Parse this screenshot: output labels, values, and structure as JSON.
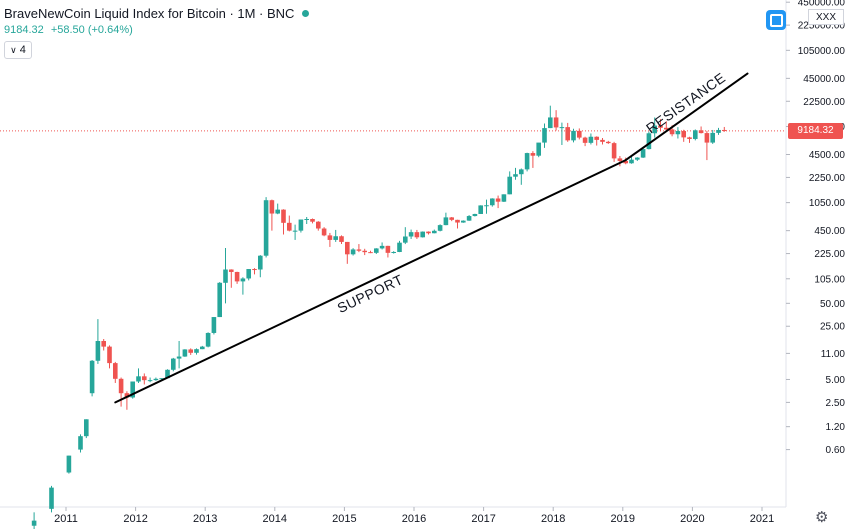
{
  "header": {
    "title": "BraveNewCoin Liquid Index for Bitcoin · 1M · BNC",
    "price": "9184.32",
    "change": "+58.50 (+0.64%)",
    "indicator_count": "4"
  },
  "currency_label": "XXX",
  "last_price_label": "9184.32",
  "colors": {
    "up": "#26a69a",
    "down": "#ef5350",
    "line": "#000000",
    "accent": "#2196f3"
  },
  "icons": [
    "chevron-down-icon",
    "live-dot-icon",
    "chart-control-icon",
    "gear-icon"
  ],
  "chart_data": {
    "type": "candlestick",
    "y_scale": "log",
    "x_ticks": [
      "2011",
      "2012",
      "2013",
      "2014",
      "2015",
      "2016",
      "2017",
      "2018",
      "2019",
      "2020",
      "2021"
    ],
    "y_ticks": [
      "450000.00",
      "225000.00",
      "105000.00",
      "45000.00",
      "22500.00",
      "10500.00",
      "4500.00",
      "2250.00",
      "1050.00",
      "450.00",
      "225.00",
      "105.00",
      "50.00",
      "25.00",
      "11.00",
      "5.00",
      "2.50",
      "1.20",
      "0.60"
    ],
    "annotations": [
      {
        "text": "SUPPORT",
        "type": "trendline",
        "from": [
          "2011-09",
          2.5
        ],
        "to": [
          "2019-01",
          3800
        ]
      },
      {
        "text": "RESISTANCE",
        "type": "trendline",
        "from": [
          "2019-01",
          3800
        ],
        "to": [
          "2020-10",
          52000
        ]
      }
    ],
    "last_price": 9184.32,
    "series": [
      {
        "values": [
          {
            "d": "2010-07",
            "o": 0.06,
            "h": 0.09,
            "l": 0.05,
            "c": 0.07
          },
          {
            "d": "2010-10",
            "o": 0.1,
            "h": 0.2,
            "l": 0.09,
            "c": 0.19
          },
          {
            "d": "2011-01",
            "o": 0.3,
            "h": 0.5,
            "l": 0.29,
            "c": 0.5
          },
          {
            "d": "2011-03",
            "o": 0.6,
            "h": 0.95,
            "l": 0.55,
            "c": 0.9
          },
          {
            "d": "2011-04",
            "o": 0.9,
            "h": 1.5,
            "l": 0.85,
            "c": 1.5
          },
          {
            "d": "2011-05",
            "o": 3.3,
            "h": 9,
            "l": 3,
            "c": 8.8
          },
          {
            "d": "2011-06",
            "o": 8.8,
            "h": 31,
            "l": 8,
            "c": 16
          },
          {
            "d": "2011-07",
            "o": 16,
            "h": 17,
            "l": 12,
            "c": 13.5
          },
          {
            "d": "2011-08",
            "o": 13.5,
            "h": 14,
            "l": 7,
            "c": 8.2
          },
          {
            "d": "2011-09",
            "o": 8.2,
            "h": 8.5,
            "l": 4.5,
            "c": 5.1
          },
          {
            "d": "2011-10",
            "o": 5.1,
            "h": 5.3,
            "l": 2.2,
            "c": 3.3
          },
          {
            "d": "2011-11",
            "o": 3.3,
            "h": 3.5,
            "l": 2,
            "c": 2.9
          },
          {
            "d": "2011-12",
            "o": 2.9,
            "h": 4.7,
            "l": 2.8,
            "c": 4.7
          },
          {
            "d": "2012-01",
            "o": 4.7,
            "h": 7,
            "l": 4.5,
            "c": 5.5
          },
          {
            "d": "2012-02",
            "o": 5.5,
            "h": 6,
            "l": 4.3,
            "c": 4.9
          },
          {
            "d": "2012-03",
            "o": 4.9,
            "h": 5.3,
            "l": 4.6,
            "c": 4.9
          },
          {
            "d": "2012-04",
            "o": 4.9,
            "h": 5.3,
            "l": 4.8,
            "c": 5.1
          },
          {
            "d": "2012-05",
            "o": 5.1,
            "h": 5.2,
            "l": 4.9,
            "c": 5.2
          },
          {
            "d": "2012-06",
            "o": 5.2,
            "h": 6.8,
            "l": 5.2,
            "c": 6.7
          },
          {
            "d": "2012-07",
            "o": 6.7,
            "h": 9.6,
            "l": 6.4,
            "c": 9.4
          },
          {
            "d": "2012-08",
            "o": 9.4,
            "h": 16,
            "l": 7,
            "c": 10
          },
          {
            "d": "2012-09",
            "o": 10,
            "h": 12.5,
            "l": 9.9,
            "c": 12.4
          },
          {
            "d": "2012-10",
            "o": 12.4,
            "h": 12.8,
            "l": 10.5,
            "c": 11.2
          },
          {
            "d": "2012-11",
            "o": 11.2,
            "h": 12.8,
            "l": 10.6,
            "c": 12.5
          },
          {
            "d": "2012-12",
            "o": 12.5,
            "h": 13.8,
            "l": 12.5,
            "c": 13.5
          },
          {
            "d": "2013-01",
            "o": 13.5,
            "h": 20.8,
            "l": 13.2,
            "c": 20.4
          },
          {
            "d": "2013-02",
            "o": 20.4,
            "h": 33,
            "l": 19.5,
            "c": 33
          },
          {
            "d": "2013-03",
            "o": 33,
            "h": 95,
            "l": 33,
            "c": 93
          },
          {
            "d": "2013-04",
            "o": 93,
            "h": 266,
            "l": 50,
            "c": 139
          },
          {
            "d": "2013-05",
            "o": 139,
            "h": 140,
            "l": 80,
            "c": 129
          },
          {
            "d": "2013-06",
            "o": 129,
            "h": 130,
            "l": 90,
            "c": 97
          },
          {
            "d": "2013-07",
            "o": 97,
            "h": 110,
            "l": 65,
            "c": 106
          },
          {
            "d": "2013-08",
            "o": 106,
            "h": 140,
            "l": 100,
            "c": 141
          },
          {
            "d": "2013-09",
            "o": 141,
            "h": 145,
            "l": 120,
            "c": 139
          },
          {
            "d": "2013-10",
            "o": 139,
            "h": 215,
            "l": 110,
            "c": 211
          },
          {
            "d": "2013-11",
            "o": 211,
            "h": 1240,
            "l": 200,
            "c": 1130
          },
          {
            "d": "2013-12",
            "o": 1130,
            "h": 1150,
            "l": 450,
            "c": 755
          },
          {
            "d": "2014-01",
            "o": 755,
            "h": 1020,
            "l": 740,
            "c": 850
          },
          {
            "d": "2014-02",
            "o": 850,
            "h": 860,
            "l": 400,
            "c": 570
          },
          {
            "d": "2014-03",
            "o": 570,
            "h": 710,
            "l": 440,
            "c": 450
          },
          {
            "d": "2014-04",
            "o": 450,
            "h": 540,
            "l": 340,
            "c": 450
          },
          {
            "d": "2014-05",
            "o": 450,
            "h": 630,
            "l": 425,
            "c": 630
          },
          {
            "d": "2014-06",
            "o": 630,
            "h": 680,
            "l": 550,
            "c": 640
          },
          {
            "d": "2014-07",
            "o": 640,
            "h": 650,
            "l": 560,
            "c": 590
          },
          {
            "d": "2014-08",
            "o": 590,
            "h": 600,
            "l": 450,
            "c": 480
          },
          {
            "d": "2014-09",
            "o": 480,
            "h": 500,
            "l": 380,
            "c": 390
          },
          {
            "d": "2014-10",
            "o": 390,
            "h": 420,
            "l": 275,
            "c": 340
          },
          {
            "d": "2014-11",
            "o": 340,
            "h": 460,
            "l": 320,
            "c": 380
          },
          {
            "d": "2014-12",
            "o": 380,
            "h": 390,
            "l": 300,
            "c": 320
          },
          {
            "d": "2015-01",
            "o": 320,
            "h": 320,
            "l": 165,
            "c": 220
          },
          {
            "d": "2015-02",
            "o": 220,
            "h": 265,
            "l": 212,
            "c": 255
          },
          {
            "d": "2015-03",
            "o": 255,
            "h": 300,
            "l": 235,
            "c": 245
          },
          {
            "d": "2015-04",
            "o": 245,
            "h": 260,
            "l": 215,
            "c": 235
          },
          {
            "d": "2015-05",
            "o": 235,
            "h": 245,
            "l": 228,
            "c": 230
          },
          {
            "d": "2015-06",
            "o": 230,
            "h": 265,
            "l": 222,
            "c": 263
          },
          {
            "d": "2015-07",
            "o": 263,
            "h": 315,
            "l": 255,
            "c": 284
          },
          {
            "d": "2015-08",
            "o": 284,
            "h": 285,
            "l": 200,
            "c": 230
          },
          {
            "d": "2015-09",
            "o": 230,
            "h": 242,
            "l": 225,
            "c": 236
          },
          {
            "d": "2015-10",
            "o": 236,
            "h": 330,
            "l": 235,
            "c": 313
          },
          {
            "d": "2015-11",
            "o": 313,
            "h": 500,
            "l": 300,
            "c": 377
          },
          {
            "d": "2015-12",
            "o": 377,
            "h": 465,
            "l": 350,
            "c": 430
          },
          {
            "d": "2016-01",
            "o": 430,
            "h": 460,
            "l": 350,
            "c": 368
          },
          {
            "d": "2016-02",
            "o": 368,
            "h": 440,
            "l": 365,
            "c": 437
          },
          {
            "d": "2016-03",
            "o": 437,
            "h": 440,
            "l": 400,
            "c": 416
          },
          {
            "d": "2016-04",
            "o": 416,
            "h": 465,
            "l": 415,
            "c": 448
          },
          {
            "d": "2016-05",
            "o": 448,
            "h": 545,
            "l": 440,
            "c": 532
          },
          {
            "d": "2016-06",
            "o": 532,
            "h": 775,
            "l": 530,
            "c": 672
          },
          {
            "d": "2016-07",
            "o": 672,
            "h": 680,
            "l": 600,
            "c": 624
          },
          {
            "d": "2016-08",
            "o": 624,
            "h": 625,
            "l": 480,
            "c": 575
          },
          {
            "d": "2016-09",
            "o": 575,
            "h": 615,
            "l": 570,
            "c": 609
          },
          {
            "d": "2016-10",
            "o": 609,
            "h": 720,
            "l": 605,
            "c": 700
          },
          {
            "d": "2016-11",
            "o": 700,
            "h": 750,
            "l": 690,
            "c": 745
          },
          {
            "d": "2016-12",
            "o": 745,
            "h": 970,
            "l": 745,
            "c": 965
          },
          {
            "d": "2017-01",
            "o": 965,
            "h": 1150,
            "l": 750,
            "c": 970
          },
          {
            "d": "2017-02",
            "o": 970,
            "h": 1200,
            "l": 930,
            "c": 1190
          },
          {
            "d": "2017-03",
            "o": 1190,
            "h": 1300,
            "l": 890,
            "c": 1080
          },
          {
            "d": "2017-04",
            "o": 1080,
            "h": 1350,
            "l": 1070,
            "c": 1350
          },
          {
            "d": "2017-05",
            "o": 1350,
            "h": 2700,
            "l": 1350,
            "c": 2300
          },
          {
            "d": "2017-06",
            "o": 2300,
            "h": 3000,
            "l": 2100,
            "c": 2480
          },
          {
            "d": "2017-07",
            "o": 2480,
            "h": 2950,
            "l": 1800,
            "c": 2870
          },
          {
            "d": "2017-08",
            "o": 2870,
            "h": 4750,
            "l": 2700,
            "c": 4700
          },
          {
            "d": "2017-09",
            "o": 4700,
            "h": 4980,
            "l": 3000,
            "c": 4340
          },
          {
            "d": "2017-10",
            "o": 4340,
            "h": 6400,
            "l": 4150,
            "c": 6450
          },
          {
            "d": "2017-11",
            "o": 6450,
            "h": 11500,
            "l": 5500,
            "c": 10000
          },
          {
            "d": "2017-12",
            "o": 10000,
            "h": 19700,
            "l": 10000,
            "c": 13800
          },
          {
            "d": "2018-01",
            "o": 13800,
            "h": 17200,
            "l": 9300,
            "c": 10200
          },
          {
            "d": "2018-02",
            "o": 10200,
            "h": 11800,
            "l": 6000,
            "c": 10300
          },
          {
            "d": "2018-03",
            "o": 10300,
            "h": 11700,
            "l": 6600,
            "c": 6900
          },
          {
            "d": "2018-04",
            "o": 6900,
            "h": 9800,
            "l": 6500,
            "c": 9200
          },
          {
            "d": "2018-05",
            "o": 9200,
            "h": 9900,
            "l": 7100,
            "c": 7500
          },
          {
            "d": "2018-06",
            "o": 7500,
            "h": 7700,
            "l": 5800,
            "c": 6400
          },
          {
            "d": "2018-07",
            "o": 6400,
            "h": 8500,
            "l": 6100,
            "c": 7700
          },
          {
            "d": "2018-08",
            "o": 7700,
            "h": 7800,
            "l": 5900,
            "c": 7000
          },
          {
            "d": "2018-09",
            "o": 7000,
            "h": 7400,
            "l": 6100,
            "c": 6600
          },
          {
            "d": "2018-10",
            "o": 6600,
            "h": 6800,
            "l": 6200,
            "c": 6350
          },
          {
            "d": "2018-11",
            "o": 6350,
            "h": 6600,
            "l": 3600,
            "c": 4000
          },
          {
            "d": "2018-12",
            "o": 4000,
            "h": 4300,
            "l": 3150,
            "c": 3700
          },
          {
            "d": "2019-01",
            "o": 3700,
            "h": 4100,
            "l": 3350,
            "c": 3450
          },
          {
            "d": "2019-02",
            "o": 3450,
            "h": 4200,
            "l": 3400,
            "c": 3850
          },
          {
            "d": "2019-03",
            "o": 3850,
            "h": 4150,
            "l": 3700,
            "c": 4100
          },
          {
            "d": "2019-04",
            "o": 4100,
            "h": 5600,
            "l": 4050,
            "c": 5300
          },
          {
            "d": "2019-05",
            "o": 5300,
            "h": 9000,
            "l": 5250,
            "c": 8550
          },
          {
            "d": "2019-06",
            "o": 8550,
            "h": 13800,
            "l": 7500,
            "c": 10800
          },
          {
            "d": "2019-07",
            "o": 10800,
            "h": 13100,
            "l": 9100,
            "c": 10100
          },
          {
            "d": "2019-08",
            "o": 10100,
            "h": 12300,
            "l": 9400,
            "c": 9600
          },
          {
            "d": "2019-09",
            "o": 9600,
            "h": 10900,
            "l": 7800,
            "c": 8300
          },
          {
            "d": "2019-10",
            "o": 8300,
            "h": 10300,
            "l": 7300,
            "c": 9150
          },
          {
            "d": "2019-11",
            "o": 9150,
            "h": 9500,
            "l": 6600,
            "c": 7550
          },
          {
            "d": "2019-12",
            "o": 7550,
            "h": 7700,
            "l": 6400,
            "c": 7200
          },
          {
            "d": "2020-01",
            "o": 7200,
            "h": 9600,
            "l": 6900,
            "c": 9350
          },
          {
            "d": "2020-02",
            "o": 9350,
            "h": 10500,
            "l": 8500,
            "c": 8600
          },
          {
            "d": "2020-03",
            "o": 8600,
            "h": 9200,
            "l": 3800,
            "c": 6450
          },
          {
            "d": "2020-04",
            "o": 6450,
            "h": 9450,
            "l": 6200,
            "c": 8650
          },
          {
            "d": "2020-05",
            "o": 8650,
            "h": 10050,
            "l": 8150,
            "c": 9450
          },
          {
            "d": "2020-06",
            "o": 9450,
            "h": 10350,
            "l": 8950,
            "c": 9184.32
          }
        ]
      }
    ]
  }
}
